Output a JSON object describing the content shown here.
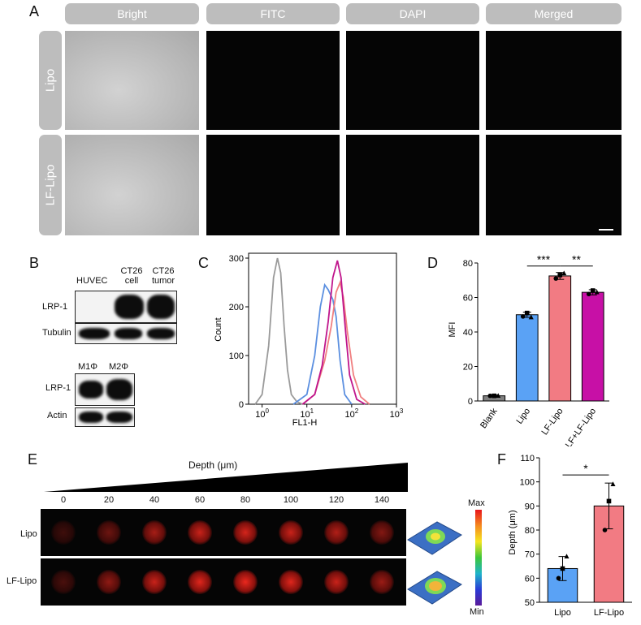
{
  "panelA": {
    "letter": "A",
    "columns": [
      "Bright",
      "FITC",
      "DAPI",
      "Merged"
    ],
    "rows": [
      "Lipo",
      "LF-Lipo"
    ]
  },
  "panelB": {
    "letter": "B",
    "top_columns": [
      "HUVEC",
      "CT26 cell",
      "CT26 tumor"
    ],
    "top_rows": [
      "LRP-1",
      "Tubulin"
    ],
    "bottom_columns": [
      "M1Φ",
      "M2Φ"
    ],
    "bottom_rows": [
      "LRP-1",
      "Actin"
    ]
  },
  "panelE": {
    "letter": "E",
    "depth_label": "Depth (μm)",
    "depths": [
      "0",
      "20",
      "40",
      "60",
      "80",
      "100",
      "120",
      "140"
    ],
    "rows": [
      "Lipo",
      "LF-Lipo"
    ],
    "colorbar_max": "Max",
    "colorbar_min": "Min"
  },
  "chart_data": [
    {
      "panel": "C",
      "type": "line",
      "xlabel": "FL1-H",
      "ylabel": "Count",
      "xscale": "log",
      "xlim": [
        0.5,
        1000
      ],
      "ylim": [
        0,
        310
      ],
      "x_ticks": [
        "10^0",
        "10^1",
        "10^2",
        "10^3"
      ],
      "y_ticks": [
        0,
        100,
        200,
        300
      ],
      "series": [
        {
          "color": "#9a9a9a",
          "x": [
            0.7,
            1.0,
            1.4,
            1.8,
            2.2,
            2.6,
            3.1,
            3.7,
            4.5,
            6.0,
            8.0
          ],
          "y": [
            0,
            20,
            120,
            260,
            300,
            270,
            160,
            70,
            20,
            5,
            0
          ]
        },
        {
          "color": "#5b8fe0",
          "x": [
            5,
            10,
            15,
            20,
            25,
            30,
            38,
            45,
            55,
            70,
            100
          ],
          "y": [
            0,
            20,
            100,
            200,
            245,
            235,
            215,
            180,
            90,
            20,
            0
          ]
        },
        {
          "color": "#f07f80",
          "x": [
            8,
            15,
            25,
            35,
            45,
            55,
            65,
            80,
            110,
            160,
            250
          ],
          "y": [
            0,
            20,
            90,
            160,
            230,
            250,
            220,
            150,
            60,
            15,
            0
          ]
        },
        {
          "color": "#c0158c",
          "x": [
            8,
            15,
            22,
            30,
            38,
            48,
            58,
            70,
            90,
            130,
            200
          ],
          "y": [
            0,
            20,
            80,
            170,
            260,
            295,
            260,
            170,
            60,
            10,
            0
          ]
        }
      ]
    },
    {
      "panel": "D",
      "type": "bar",
      "ylabel": "MFI",
      "ylim": [
        0,
        80
      ],
      "y_ticks": [
        0,
        20,
        40,
        60,
        80
      ],
      "categories": [
        "Blank",
        "Lipo",
        "LF-Lipo",
        "LF+LF-Lipo"
      ],
      "values": [
        3,
        50,
        72.5,
        63
      ],
      "errors": [
        0.5,
        1.5,
        2,
        1.5
      ],
      "points": [
        [
          3,
          3,
          3
        ],
        [
          49,
          51,
          48.5
        ],
        [
          71,
          73,
          74
        ],
        [
          62,
          64,
          63
        ]
      ],
      "colors": [
        "#7f7f7f",
        "#5aa2f5",
        "#f27b83",
        "#c710a6"
      ],
      "significance": [
        {
          "from": 1,
          "to": 2,
          "label": "***"
        },
        {
          "from": 2,
          "to": 3,
          "label": "**"
        }
      ]
    },
    {
      "panel": "F",
      "type": "bar",
      "ylabel": "Depth (μm)",
      "ylim": [
        50,
        110
      ],
      "y_ticks": [
        50,
        60,
        70,
        80,
        90,
        100,
        110
      ],
      "categories": [
        "Lipo",
        "LF-Lipo"
      ],
      "values": [
        64,
        90
      ],
      "errors": [
        5,
        9.5
      ],
      "points": [
        [
          60,
          64,
          69
        ],
        [
          80,
          92,
          99
        ]
      ],
      "colors": [
        "#5aa2f5",
        "#f27b83"
      ],
      "significance": [
        {
          "from": 0,
          "to": 1,
          "label": "*"
        }
      ]
    }
  ]
}
